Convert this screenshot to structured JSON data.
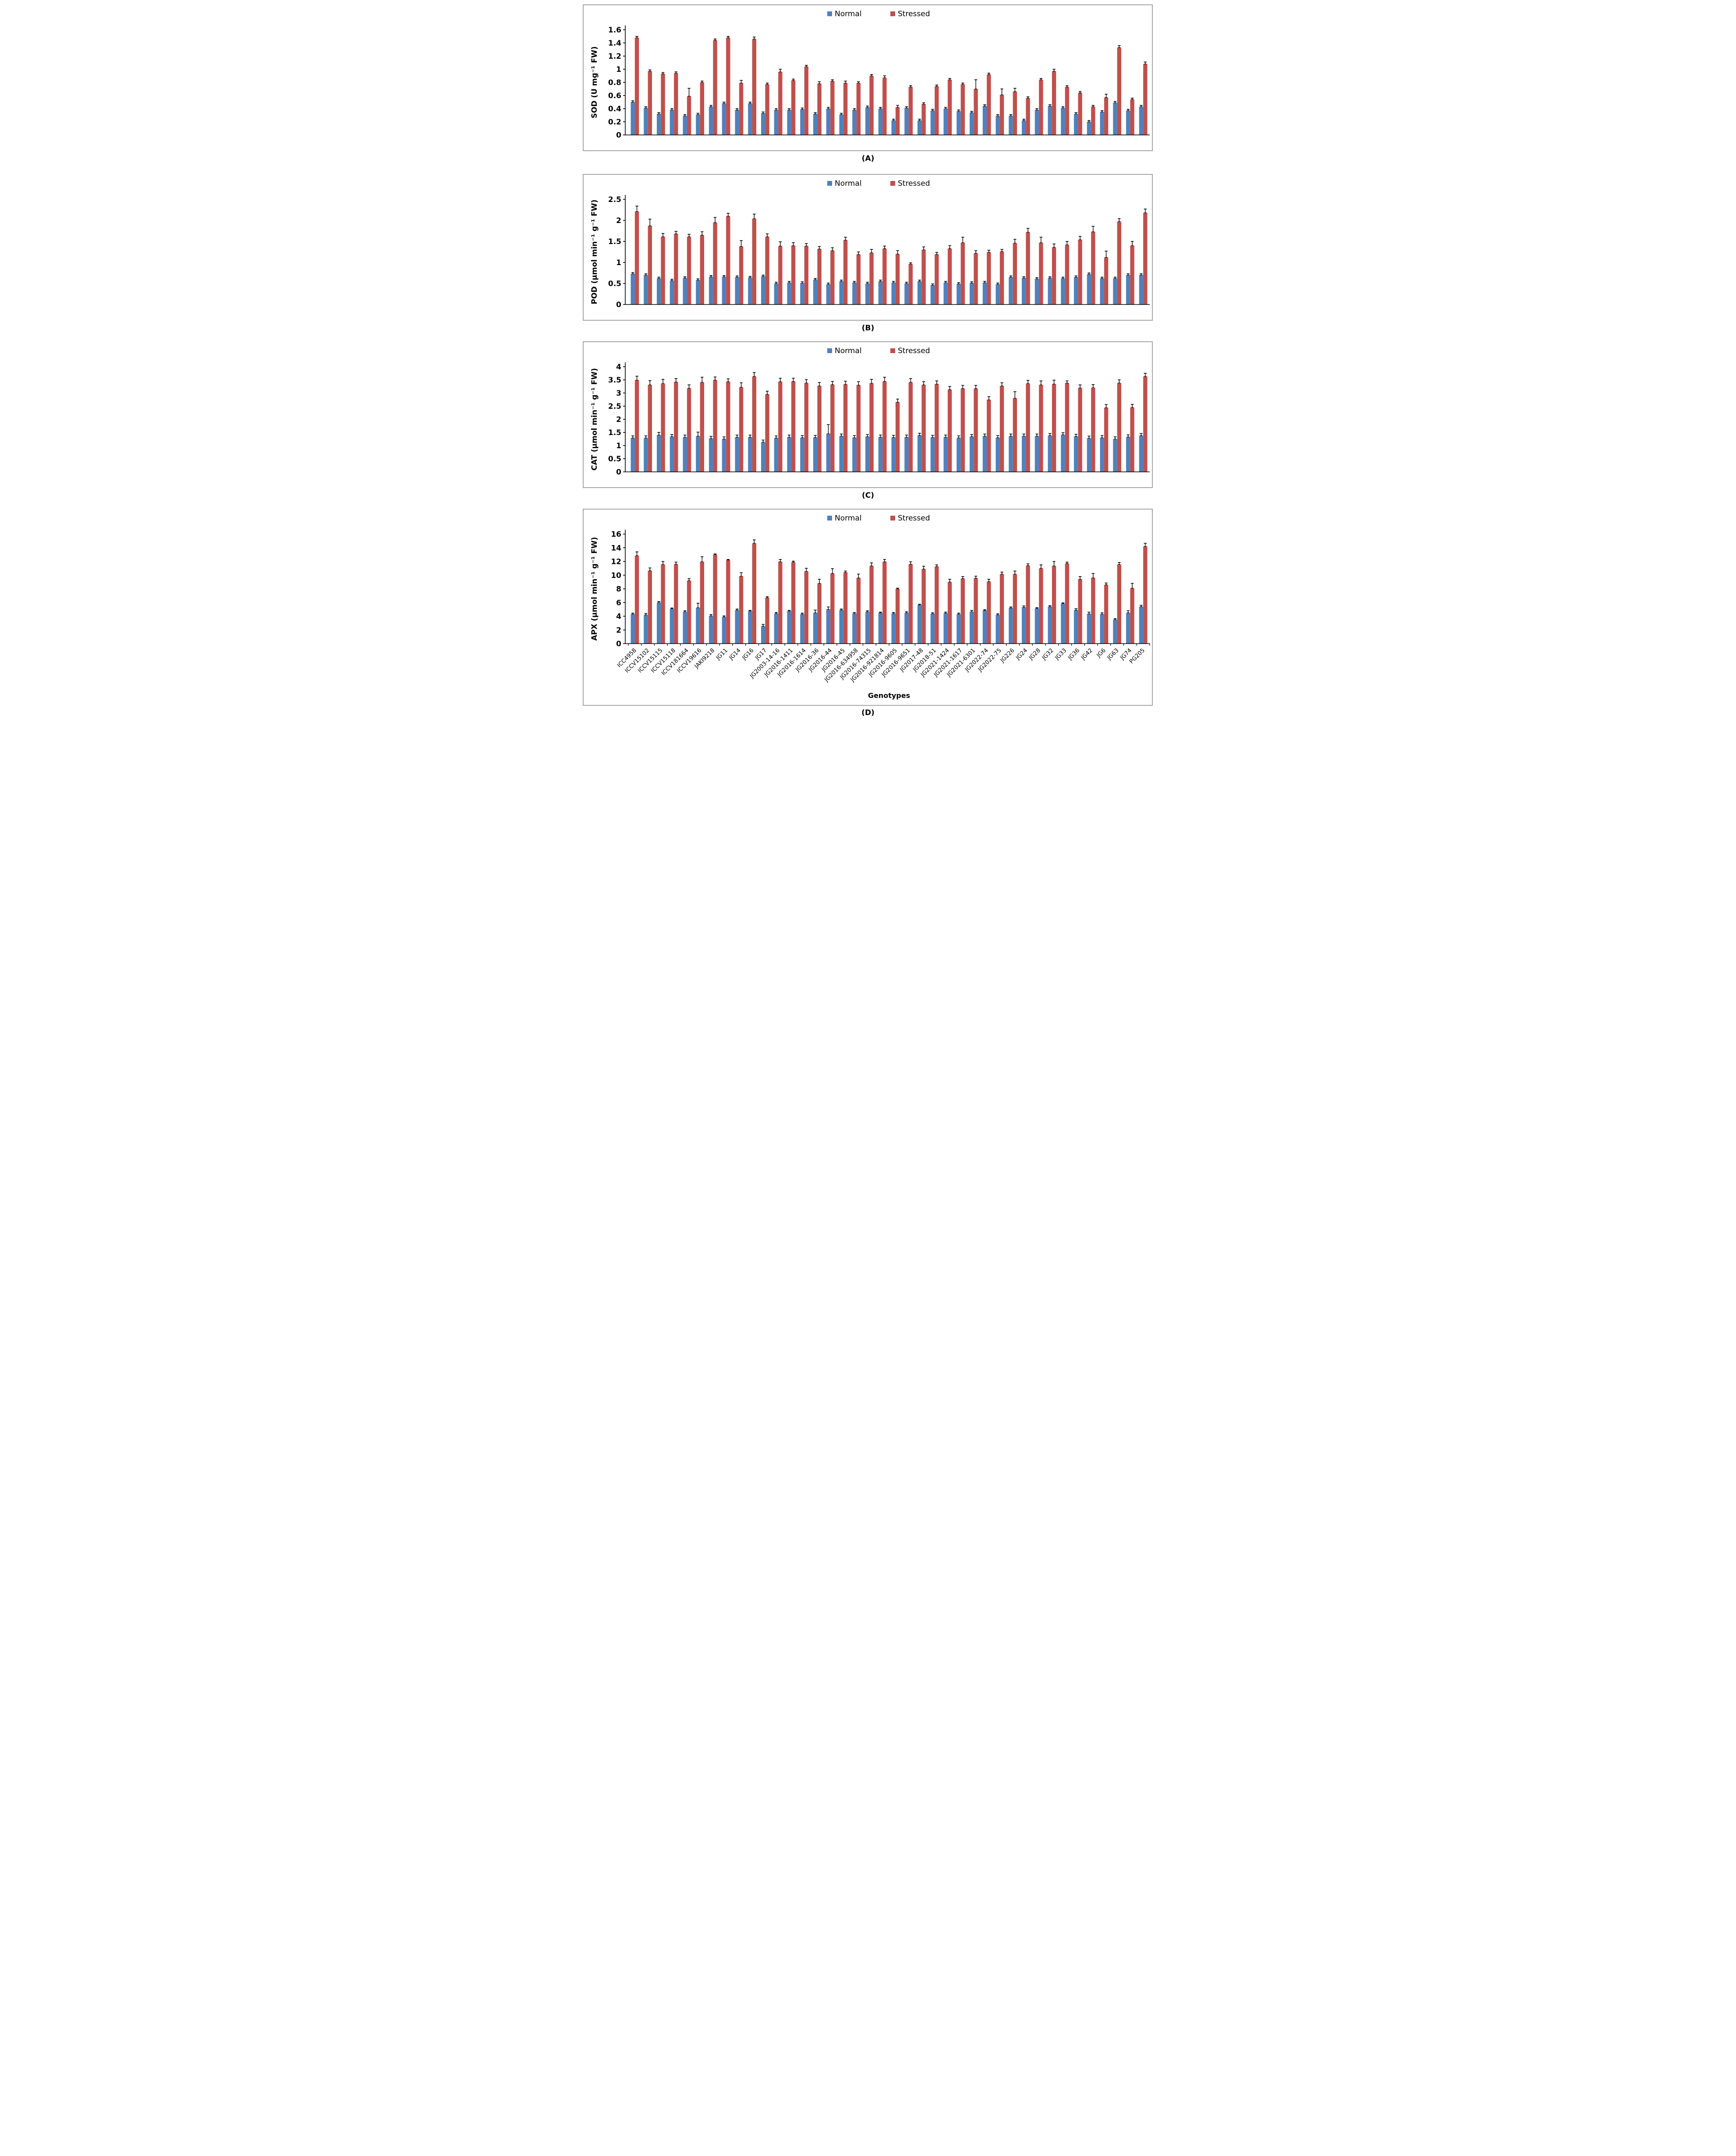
{
  "page": {
    "background": "#ffffff"
  },
  "colors": {
    "normal": "#4F81BD",
    "stressed": "#C0504D",
    "error_bar": "#000000",
    "axis": "#000000",
    "panel_border": "#a6a6a6",
    "text": "#000000"
  },
  "legend": {
    "items": [
      {
        "label": "Normal",
        "color": "#4F81BD"
      },
      {
        "label": "Stressed",
        "color": "#C0504D"
      }
    ]
  },
  "genotypes": [
    "ICC4958",
    "ICCV15102",
    "ICCV15115",
    "ICCV15118",
    "ICCV181664",
    "ICCV19616",
    "JAKI9218",
    "JG11",
    "JG14",
    "JG16",
    "JG17",
    "JG2003-14-16",
    "JG2016-1411",
    "JG2016-1614",
    "JG2016-36",
    "JG2016-44",
    "JG2016-45",
    "JG2016-634958",
    "JG2016-74315",
    "JG2016-921814",
    "JG2016-9605",
    "JG2016-9651",
    "JG2017-48",
    "JG2018-51",
    "JG2021-1424",
    "JG2021-1617",
    "JG2021-6301",
    "JG2022-74",
    "JG2022-75",
    "JG226",
    "JG24",
    "JG28",
    "JG32",
    "JG33",
    "JG36",
    "JG42",
    "JG6",
    "JG63",
    "JG74",
    "PG205"
  ],
  "xlabel": "Genotypes",
  "chart_data": [
    {
      "id": "A",
      "type": "bar",
      "caption": "(A)",
      "ylabel": "SOD (U mg⁻¹ FW)",
      "ylim": [
        0,
        1.6
      ],
      "ytick_step": 0.2,
      "grid": false,
      "legend_position": "top-center",
      "categories_ref": "genotypes",
      "series": [
        {
          "name": "Normal",
          "values": [
            0.5,
            0.41,
            0.32,
            0.38,
            0.29,
            0.31,
            0.43,
            0.48,
            0.38,
            0.48,
            0.33,
            0.38,
            0.38,
            0.39,
            0.32,
            0.4,
            0.31,
            0.38,
            0.42,
            0.4,
            0.22,
            0.41,
            0.22,
            0.37,
            0.4,
            0.36,
            0.34,
            0.44,
            0.29,
            0.29,
            0.22,
            0.38,
            0.44,
            0.41,
            0.32,
            0.2,
            0.35,
            0.49,
            0.37,
            0.43
          ],
          "errors": [
            0.02,
            0.02,
            0.02,
            0.02,
            0.02,
            0.02,
            0.02,
            0.02,
            0.02,
            0.02,
            0.02,
            0.02,
            0.02,
            0.02,
            0.02,
            0.02,
            0.02,
            0.02,
            0.02,
            0.02,
            0.02,
            0.02,
            0.02,
            0.02,
            0.02,
            0.02,
            0.02,
            0.02,
            0.02,
            0.02,
            0.02,
            0.02,
            0.02,
            0.02,
            0.02,
            0.02,
            0.02,
            0.02,
            0.02,
            0.02
          ]
        },
        {
          "name": "Stressed",
          "values": [
            1.48,
            0.97,
            0.93,
            0.94,
            0.59,
            0.8,
            1.44,
            1.48,
            0.79,
            1.46,
            0.77,
            0.96,
            0.83,
            1.04,
            0.78,
            0.82,
            0.79,
            0.79,
            0.9,
            0.87,
            0.42,
            0.73,
            0.47,
            0.74,
            0.84,
            0.77,
            0.7,
            0.92,
            0.61,
            0.66,
            0.56,
            0.84,
            0.97,
            0.73,
            0.64,
            0.43,
            0.57,
            1.33,
            0.54,
            1.08
          ],
          "errors": [
            0.02,
            0.02,
            0.02,
            0.02,
            0.12,
            0.02,
            0.02,
            0.02,
            0.04,
            0.03,
            0.02,
            0.04,
            0.02,
            0.02,
            0.03,
            0.02,
            0.03,
            0.02,
            0.02,
            0.03,
            0.03,
            0.02,
            0.02,
            0.02,
            0.02,
            0.02,
            0.14,
            0.02,
            0.09,
            0.05,
            0.02,
            0.02,
            0.03,
            0.02,
            0.02,
            0.02,
            0.05,
            0.03,
            0.02,
            0.03
          ]
        }
      ]
    },
    {
      "id": "B",
      "type": "bar",
      "caption": "(B)",
      "ylabel": "POD (µmol min⁻¹ g⁻¹ FW)",
      "ylim": [
        0,
        2.5
      ],
      "ytick_step": 0.5,
      "grid": false,
      "legend_position": "top-center",
      "categories_ref": "genotypes",
      "series": [
        {
          "name": "Normal",
          "values": [
            0.73,
            0.7,
            0.62,
            0.57,
            0.63,
            0.58,
            0.66,
            0.66,
            0.65,
            0.64,
            0.67,
            0.5,
            0.52,
            0.51,
            0.59,
            0.48,
            0.55,
            0.52,
            0.5,
            0.55,
            0.52,
            0.5,
            0.55,
            0.46,
            0.52,
            0.49,
            0.51,
            0.52,
            0.48,
            0.65,
            0.63,
            0.61,
            0.63,
            0.62,
            0.65,
            0.72,
            0.62,
            0.62,
            0.7,
            0.7
          ],
          "errors": [
            0.03,
            0.03,
            0.03,
            0.03,
            0.03,
            0.03,
            0.03,
            0.03,
            0.03,
            0.03,
            0.03,
            0.03,
            0.03,
            0.03,
            0.03,
            0.03,
            0.03,
            0.03,
            0.03,
            0.03,
            0.03,
            0.03,
            0.03,
            0.03,
            0.03,
            0.03,
            0.03,
            0.03,
            0.03,
            0.03,
            0.03,
            0.03,
            0.03,
            0.03,
            0.03,
            0.03,
            0.03,
            0.03,
            0.03,
            0.03
          ]
        },
        {
          "name": "Stressed",
          "values": [
            2.21,
            1.87,
            1.61,
            1.68,
            1.61,
            1.65,
            1.95,
            2.1,
            1.38,
            2.04,
            1.61,
            1.39,
            1.4,
            1.39,
            1.32,
            1.28,
            1.53,
            1.19,
            1.23,
            1.33,
            1.2,
            0.96,
            1.3,
            1.19,
            1.33,
            1.47,
            1.22,
            1.24,
            1.26,
            1.46,
            1.72,
            1.47,
            1.36,
            1.42,
            1.54,
            1.73,
            1.12,
            1.97,
            1.4,
            2.18
          ],
          "errors": [
            0.13,
            0.16,
            0.08,
            0.06,
            0.06,
            0.08,
            0.12,
            0.07,
            0.14,
            0.11,
            0.07,
            0.1,
            0.07,
            0.06,
            0.06,
            0.07,
            0.07,
            0.06,
            0.08,
            0.06,
            0.08,
            0.03,
            0.07,
            0.05,
            0.07,
            0.13,
            0.06,
            0.05,
            0.05,
            0.09,
            0.09,
            0.13,
            0.08,
            0.08,
            0.08,
            0.13,
            0.15,
            0.07,
            0.1,
            0.09
          ]
        }
      ]
    },
    {
      "id": "C",
      "type": "bar",
      "caption": "(C)",
      "ylabel": "CAT (µmol min⁻¹ g⁻¹ FW)",
      "ylim": [
        0,
        4
      ],
      "ytick_step": 0.5,
      "grid": false,
      "legend_position": "top-center",
      "categories_ref": "genotypes",
      "series": [
        {
          "name": "Normal",
          "values": [
            1.29,
            1.29,
            1.4,
            1.34,
            1.32,
            1.36,
            1.27,
            1.25,
            1.32,
            1.32,
            1.13,
            1.29,
            1.32,
            1.3,
            1.31,
            1.45,
            1.36,
            1.3,
            1.34,
            1.32,
            1.31,
            1.32,
            1.39,
            1.31,
            1.32,
            1.29,
            1.34,
            1.36,
            1.3,
            1.36,
            1.36,
            1.36,
            1.38,
            1.41,
            1.35,
            1.28,
            1.3,
            1.25,
            1.33,
            1.38
          ],
          "errors": [
            0.08,
            0.08,
            0.1,
            0.08,
            0.08,
            0.15,
            0.08,
            0.08,
            0.08,
            0.08,
            0.08,
            0.08,
            0.08,
            0.08,
            0.08,
            0.35,
            0.08,
            0.08,
            0.08,
            0.08,
            0.08,
            0.08,
            0.08,
            0.08,
            0.08,
            0.08,
            0.08,
            0.08,
            0.08,
            0.08,
            0.08,
            0.08,
            0.08,
            0.08,
            0.08,
            0.08,
            0.08,
            0.08,
            0.08,
            0.08
          ]
        },
        {
          "name": "Stressed",
          "values": [
            3.49,
            3.31,
            3.36,
            3.42,
            3.18,
            3.41,
            3.49,
            3.43,
            3.22,
            3.63,
            2.95,
            3.43,
            3.44,
            3.38,
            3.27,
            3.32,
            3.33,
            3.3,
            3.37,
            3.44,
            2.65,
            3.41,
            3.31,
            3.34,
            3.13,
            3.17,
            3.17,
            2.74,
            3.27,
            2.8,
            3.36,
            3.31,
            3.34,
            3.38,
            3.19,
            3.2,
            2.44,
            3.38,
            2.45,
            3.63
          ],
          "errors": [
            0.15,
            0.16,
            0.16,
            0.13,
            0.13,
            0.19,
            0.12,
            0.11,
            0.17,
            0.15,
            0.12,
            0.13,
            0.12,
            0.13,
            0.13,
            0.12,
            0.12,
            0.13,
            0.15,
            0.16,
            0.12,
            0.14,
            0.12,
            0.12,
            0.12,
            0.12,
            0.12,
            0.12,
            0.12,
            0.25,
            0.12,
            0.15,
            0.15,
            0.08,
            0.12,
            0.12,
            0.12,
            0.12,
            0.12,
            0.12
          ]
        }
      ]
    },
    {
      "id": "D",
      "type": "bar",
      "caption": "(D)",
      "ylabel": "APX (µmol min⁻¹ g⁻¹ FW)",
      "xlabel": "Genotypes",
      "ylim": [
        0,
        16
      ],
      "ytick_step": 2,
      "grid": false,
      "legend_position": "top-center",
      "categories_ref": "genotypes",
      "series": [
        {
          "name": "Normal",
          "values": [
            4.3,
            4.2,
            6.0,
            5.1,
            4.65,
            5.25,
            4.05,
            3.9,
            4.9,
            4.75,
            2.55,
            4.4,
            4.75,
            4.3,
            4.5,
            5.0,
            4.9,
            4.4,
            4.65,
            4.5,
            4.4,
            4.5,
            5.65,
            4.35,
            4.45,
            4.3,
            4.65,
            4.85,
            4.2,
            5.2,
            5.3,
            5.15,
            5.4,
            5.85,
            4.9,
            4.35,
            4.3,
            3.5,
            4.5,
            5.4
          ],
          "errors": [
            0.15,
            0.2,
            0.15,
            0.1,
            0.15,
            0.65,
            0.2,
            0.15,
            0.15,
            0.1,
            0.25,
            0.15,
            0.1,
            0.15,
            0.4,
            0.35,
            0.15,
            0.15,
            0.15,
            0.1,
            0.15,
            0.15,
            0.1,
            0.15,
            0.15,
            0.15,
            0.2,
            0.1,
            0.15,
            0.15,
            0.2,
            0.1,
            0.15,
            0.1,
            0.2,
            0.25,
            0.2,
            0.15,
            0.3,
            0.2
          ]
        },
        {
          "name": "Stressed",
          "values": [
            12.85,
            10.65,
            11.55,
            11.6,
            9.2,
            11.95,
            13.0,
            12.2,
            9.85,
            14.65,
            6.7,
            11.95,
            11.9,
            10.55,
            8.8,
            10.25,
            10.4,
            9.6,
            11.35,
            11.95,
            8.0,
            11.6,
            10.9,
            11.25,
            9.0,
            9.5,
            9.55,
            9.05,
            10.15,
            10.15,
            11.4,
            11.0,
            11.35,
            11.7,
            9.4,
            9.6,
            8.6,
            11.55,
            8.1,
            14.2
          ],
          "errors": [
            0.55,
            0.4,
            0.45,
            0.3,
            0.3,
            0.75,
            0.1,
            0.1,
            0.5,
            0.5,
            0.15,
            0.35,
            0.15,
            0.45,
            0.6,
            0.7,
            0.2,
            0.55,
            0.45,
            0.35,
            0.1,
            0.35,
            0.4,
            0.25,
            0.4,
            0.3,
            0.3,
            0.35,
            0.3,
            0.45,
            0.25,
            0.5,
            0.65,
            0.2,
            0.4,
            0.65,
            0.25,
            0.3,
            0.7,
            0.45
          ]
        }
      ]
    }
  ]
}
